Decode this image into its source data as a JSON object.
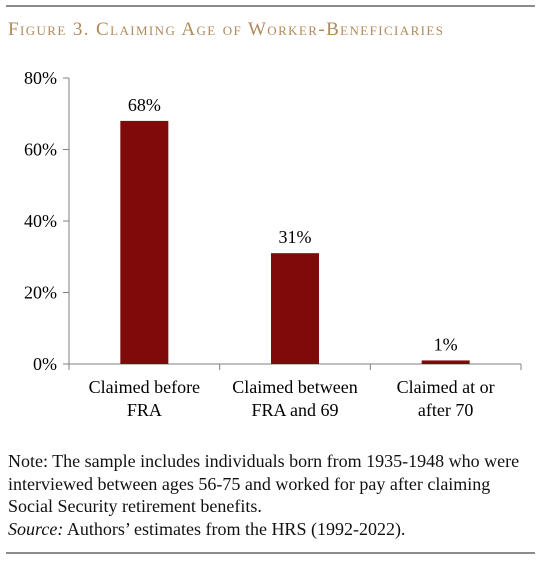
{
  "figure_title": "Figure 3. Claiming Age of Worker-Beneficiaries",
  "colors": {
    "title": "#B08A5A",
    "rule": "#8C8C8C",
    "bar": "#7F0A0A",
    "axis": "#7F7F7F",
    "text": "#000000"
  },
  "chart_data": {
    "type": "bar",
    "categories": [
      [
        "Claimed before",
        "FRA"
      ],
      [
        "Claimed between",
        "FRA and 69"
      ],
      [
        "Claimed at or",
        "after 70"
      ]
    ],
    "values": [
      68,
      31,
      1
    ],
    "data_labels": [
      "68%",
      "31%",
      "1%"
    ],
    "ylim": [
      0,
      80
    ],
    "yticks": [
      0,
      20,
      40,
      60,
      80
    ],
    "ytick_labels": [
      "0%",
      "20%",
      "40%",
      "60%",
      "80%"
    ],
    "grid": false,
    "legend": false
  },
  "note": {
    "text": "Note: The sample includes individuals born from 1935-1948 who were interviewed between ages 56-75 and worked for pay after claiming Social Security retirement benefits.",
    "source_label": "Source:",
    "source_text": " Authors’ estimates from the HRS (1992-2022)."
  }
}
